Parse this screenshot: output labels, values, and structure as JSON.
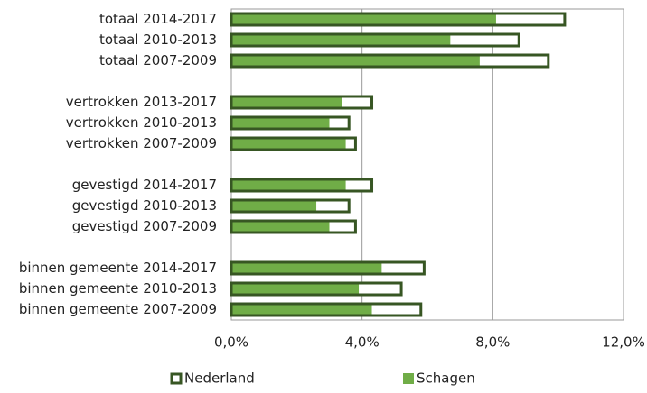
{
  "chart_data": {
    "type": "bar",
    "orientation": "horizontal",
    "categories": [
      "totaal 2014-2017",
      "totaal 2010-2013",
      "totaal 2007-2009",
      null,
      "vertrokken 2013-2017",
      "vertrokken 2010-2013",
      "vertrokken 2007-2009",
      null,
      "gevestigd 2014-2017",
      "gevestigd 2010-2013",
      "gevestigd 2007-2009",
      null,
      "binnen gemeente 2014-2017",
      "binnen gemeente 2010-2013",
      "binnen gemeente 2007-2009"
    ],
    "series": [
      {
        "name": "Nederland",
        "color": "#375623",
        "values": [
          10.2,
          8.8,
          9.7,
          null,
          4.3,
          3.6,
          3.8,
          null,
          4.3,
          3.6,
          3.8,
          null,
          5.9,
          5.2,
          5.8
        ]
      },
      {
        "name": "Schagen",
        "color": "#70ad47",
        "values": [
          8.1,
          6.7,
          7.6,
          null,
          3.4,
          3.0,
          3.5,
          null,
          3.5,
          2.6,
          3.0,
          null,
          4.6,
          3.9,
          4.3
        ]
      }
    ],
    "xlim": [
      0,
      12
    ],
    "xticks": [
      {
        "value": 0,
        "label": "0,0%"
      },
      {
        "value": 4,
        "label": "4,0%"
      },
      {
        "value": 8,
        "label": "8,0%"
      },
      {
        "value": 12,
        "label": "12,0%"
      }
    ],
    "grid": true,
    "legend": "bottom"
  }
}
